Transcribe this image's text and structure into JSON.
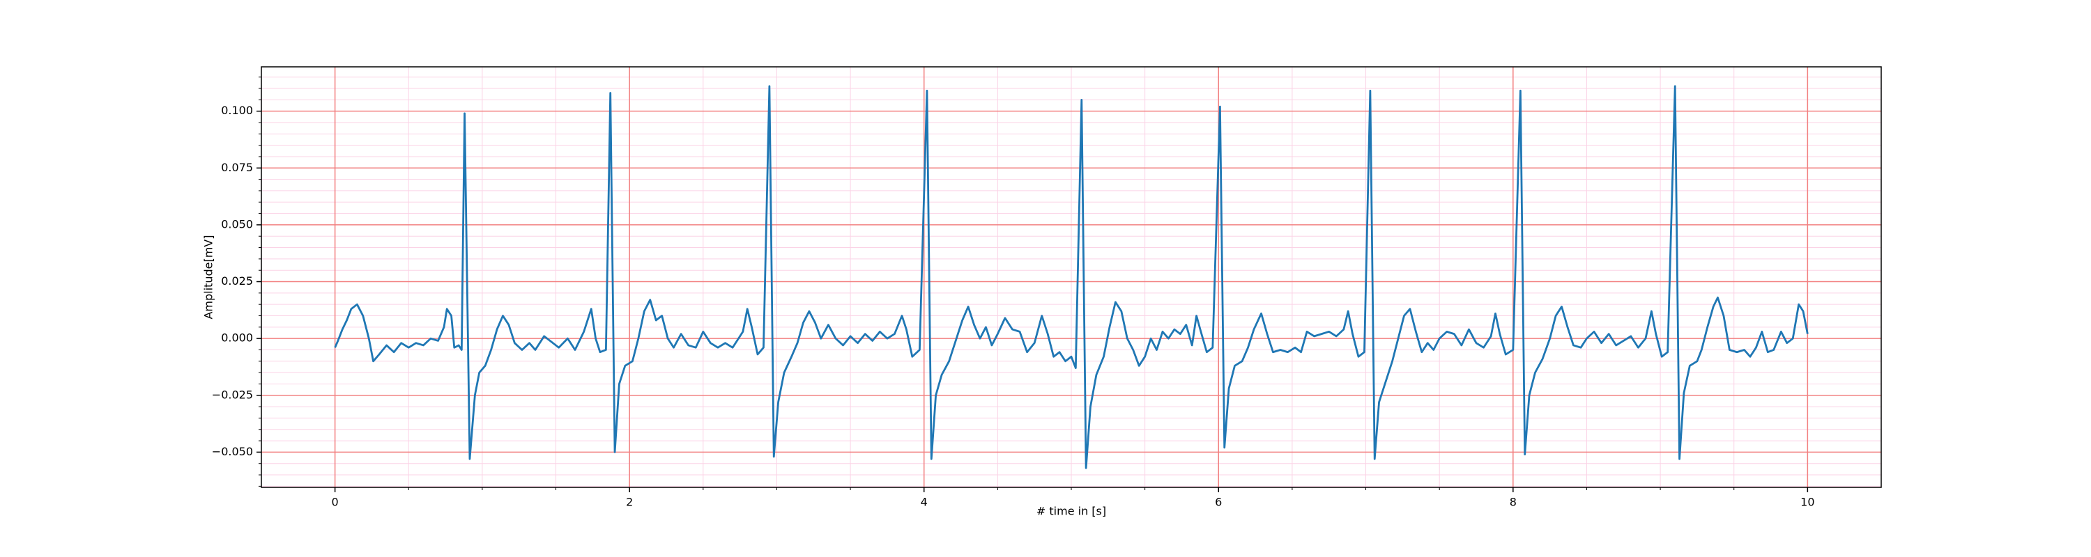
{
  "chart_data": {
    "type": "line",
    "xlabel": "# time in [s]",
    "ylabel": "Amplitude[mV]",
    "x": [
      0,
      0.02,
      0.05,
      0.08,
      0.11,
      0.15,
      0.19,
      0.23,
      0.26,
      0.3,
      0.35,
      0.4,
      0.45,
      0.5,
      0.55,
      0.6,
      0.65,
      0.7,
      0.74,
      0.76,
      0.79,
      0.81,
      0.84,
      0.86,
      0.88,
      0.915,
      0.95,
      0.98,
      1.02,
      1.06,
      1.1,
      1.14,
      1.18,
      1.22,
      1.27,
      1.32,
      1.36,
      1.42,
      1.48,
      1.52,
      1.58,
      1.63,
      1.69,
      1.74,
      1.77,
      1.8,
      1.84,
      1.87,
      1.9,
      1.93,
      1.97,
      2.02,
      2.06,
      2.1,
      2.14,
      2.18,
      2.22,
      2.26,
      2.3,
      2.35,
      2.4,
      2.45,
      2.5,
      2.55,
      2.6,
      2.65,
      2.7,
      2.77,
      2.8,
      2.83,
      2.87,
      2.91,
      2.95,
      2.98,
      3.01,
      3.05,
      3.1,
      3.14,
      3.18,
      3.22,
      3.26,
      3.3,
      3.35,
      3.4,
      3.45,
      3.5,
      3.55,
      3.6,
      3.65,
      3.7,
      3.75,
      3.8,
      3.85,
      3.88,
      3.92,
      3.97,
      4.02,
      4.05,
      4.08,
      4.12,
      4.17,
      4.22,
      4.26,
      4.3,
      4.34,
      4.38,
      4.42,
      4.46,
      4.5,
      4.55,
      4.6,
      4.65,
      4.7,
      4.75,
      4.8,
      4.84,
      4.88,
      4.92,
      4.96,
      5.0,
      5.03,
      5.07,
      5.1,
      5.13,
      5.17,
      5.22,
      5.26,
      5.3,
      5.34,
      5.38,
      5.42,
      5.46,
      5.5,
      5.54,
      5.58,
      5.62,
      5.66,
      5.7,
      5.74,
      5.78,
      5.82,
      5.85,
      5.88,
      5.92,
      5.96,
      6.01,
      6.04,
      6.07,
      6.11,
      6.16,
      6.2,
      6.24,
      6.29,
      6.33,
      6.37,
      6.42,
      6.47,
      6.52,
      6.56,
      6.6,
      6.65,
      6.7,
      6.75,
      6.8,
      6.85,
      6.88,
      6.91,
      6.95,
      6.99,
      7.03,
      7.06,
      7.09,
      7.13,
      7.18,
      7.22,
      7.26,
      7.3,
      7.34,
      7.38,
      7.42,
      7.46,
      7.5,
      7.55,
      7.6,
      7.65,
      7.7,
      7.75,
      7.8,
      7.85,
      7.88,
      7.91,
      7.95,
      8.0,
      8.05,
      8.08,
      8.11,
      8.15,
      8.2,
      8.25,
      8.29,
      8.33,
      8.37,
      8.41,
      8.46,
      8.5,
      8.55,
      8.6,
      8.65,
      8.7,
      8.75,
      8.8,
      8.85,
      8.9,
      8.94,
      8.97,
      9.01,
      9.05,
      9.1,
      9.13,
      9.16,
      9.2,
      9.25,
      9.28,
      9.32,
      9.36,
      9.39,
      9.43,
      9.47,
      9.52,
      9.57,
      9.61,
      9.65,
      9.69,
      9.73,
      9.77,
      9.82,
      9.86,
      9.9,
      9.94,
      9.97,
      10.0
    ],
    "values": [
      -0.004,
      -0.001,
      0.004,
      0.008,
      0.013,
      0.015,
      0.01,
      0.0,
      -0.01,
      -0.007,
      -0.003,
      -0.006,
      -0.002,
      -0.004,
      -0.002,
      -0.003,
      0.0,
      -0.001,
      0.005,
      0.013,
      0.01,
      -0.004,
      -0.003,
      -0.005,
      0.099,
      -0.053,
      -0.025,
      -0.015,
      -0.012,
      -0.005,
      0.004,
      0.01,
      0.006,
      -0.002,
      -0.005,
      -0.002,
      -0.005,
      0.001,
      -0.002,
      -0.004,
      0.0,
      -0.005,
      0.003,
      0.013,
      0.0,
      -0.006,
      -0.005,
      0.108,
      -0.05,
      -0.02,
      -0.012,
      -0.01,
      0.0,
      0.012,
      0.017,
      0.008,
      0.01,
      0.0,
      -0.004,
      0.002,
      -0.003,
      -0.004,
      0.003,
      -0.002,
      -0.004,
      -0.002,
      -0.004,
      0.003,
      0.013,
      0.005,
      -0.007,
      -0.004,
      0.111,
      -0.052,
      -0.028,
      -0.015,
      -0.008,
      -0.002,
      0.007,
      0.012,
      0.007,
      0.0,
      0.006,
      0.0,
      -0.003,
      0.001,
      -0.002,
      0.002,
      -0.001,
      0.003,
      0.0,
      0.002,
      0.01,
      0.004,
      -0.008,
      -0.005,
      0.109,
      -0.053,
      -0.025,
      -0.016,
      -0.01,
      0.0,
      0.008,
      0.014,
      0.006,
      0.0,
      0.005,
      -0.003,
      0.002,
      0.009,
      0.004,
      0.003,
      -0.006,
      -0.002,
      0.01,
      0.002,
      -0.008,
      -0.006,
      -0.01,
      -0.008,
      -0.013,
      0.105,
      -0.057,
      -0.03,
      -0.016,
      -0.008,
      0.005,
      0.016,
      0.012,
      0.0,
      -0.005,
      -0.012,
      -0.008,
      0.0,
      -0.005,
      0.003,
      0.0,
      0.004,
      0.002,
      0.006,
      -0.003,
      0.01,
      0.003,
      -0.006,
      -0.004,
      0.102,
      -0.048,
      -0.022,
      -0.012,
      -0.01,
      -0.004,
      0.004,
      0.011,
      0.002,
      -0.006,
      -0.005,
      -0.006,
      -0.004,
      -0.006,
      0.003,
      0.001,
      0.002,
      0.003,
      0.001,
      0.004,
      0.012,
      0.002,
      -0.008,
      -0.006,
      0.109,
      -0.053,
      -0.028,
      -0.02,
      -0.01,
      0.0,
      0.01,
      0.013,
      0.003,
      -0.006,
      -0.002,
      -0.005,
      0.0,
      0.003,
      0.002,
      -0.003,
      0.004,
      -0.002,
      -0.004,
      0.001,
      0.011,
      0.002,
      -0.007,
      -0.005,
      0.109,
      -0.051,
      -0.025,
      -0.015,
      -0.009,
      0.0,
      0.01,
      0.014,
      0.005,
      -0.003,
      -0.004,
      0.0,
      0.003,
      -0.002,
      0.002,
      -0.003,
      -0.001,
      0.001,
      -0.004,
      0.0,
      0.012,
      0.002,
      -0.008,
      -0.006,
      0.111,
      -0.053,
      -0.024,
      -0.012,
      -0.01,
      -0.005,
      0.005,
      0.014,
      0.018,
      0.01,
      -0.005,
      -0.006,
      -0.005,
      -0.008,
      -0.004,
      0.003,
      -0.006,
      -0.005,
      0.003,
      -0.002,
      0.0,
      0.015,
      0.012,
      0.002
    ],
    "color": "#1f77b4",
    "xlim": [
      -0.5,
      10.5
    ],
    "ylim": [
      -0.0655,
      0.1195
    ],
    "xticks": [
      0,
      2,
      4,
      6,
      8,
      10
    ],
    "yticks": [
      {
        "value": -0.05,
        "label": "−0.050"
      },
      {
        "value": -0.025,
        "label": "−0.025"
      },
      {
        "value": 0,
        "label": "0.000"
      },
      {
        "value": 0.025,
        "label": "0.025"
      },
      {
        "value": 0.05,
        "label": "0.050"
      },
      {
        "value": 0.075,
        "label": "0.075"
      },
      {
        "value": 0.1,
        "label": "0.100"
      }
    ],
    "xminorticks": [
      0.5,
      1,
      1.5,
      2.5,
      3,
      3.5,
      4.5,
      5,
      5.5,
      6.5,
      7,
      7.5,
      8.5,
      9,
      9.5
    ],
    "yminorticks": [
      -0.065,
      -0.06,
      -0.055,
      -0.045,
      -0.04,
      -0.035,
      -0.03,
      -0.02,
      -0.015,
      -0.01,
      -0.005,
      0.005,
      0.01,
      0.015,
      0.02,
      0.03,
      0.035,
      0.04,
      0.045,
      0.055,
      0.06,
      0.065,
      0.07,
      0.08,
      0.085,
      0.09,
      0.095,
      0.105,
      0.11,
      0.115
    ],
    "grid": true,
    "grid_color": "#f28080",
    "minor_grid_color": "#fbd3e6"
  }
}
